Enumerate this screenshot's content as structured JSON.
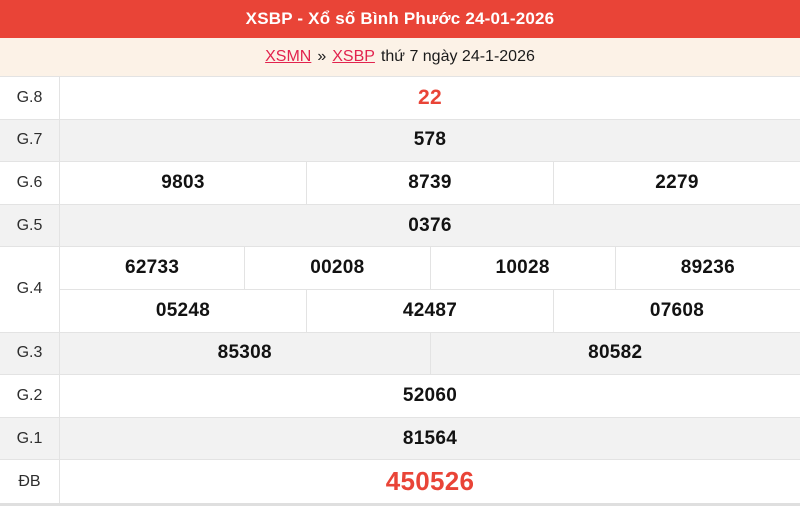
{
  "header": {
    "title": "XSBP - Xổ số Bình Phước 24-01-2026"
  },
  "breadcrumb": {
    "links": [
      "XSMN",
      "XSBP"
    ],
    "separator": "»",
    "date_text": "thứ 7 ngày 24-1-2026"
  },
  "results": {
    "rows": [
      {
        "label": "G.8",
        "values": [
          "22"
        ]
      },
      {
        "label": "G.7",
        "values": [
          "578"
        ]
      },
      {
        "label": "G.6",
        "values": [
          "9803",
          "8739",
          "2279"
        ]
      },
      {
        "label": "G.5",
        "values": [
          "0376"
        ]
      },
      {
        "label": "G.4",
        "lines": [
          [
            "62733",
            "00208",
            "10028",
            "89236"
          ],
          [
            "05248",
            "42487",
            "07608"
          ]
        ]
      },
      {
        "label": "G.3",
        "values": [
          "85308",
          "80582"
        ]
      },
      {
        "label": "G.2",
        "values": [
          "52060"
        ]
      },
      {
        "label": "G.1",
        "values": [
          "81564"
        ]
      },
      {
        "label": "ĐB",
        "values": [
          "450526"
        ]
      }
    ]
  },
  "colors": {
    "accent_red": "#e94437",
    "link_red": "#e2234e",
    "breadcrumb_bg": "#fcf2e7",
    "row_alt_bg": "#f2f2f2",
    "border": "#e3e3e3",
    "value_text": "#121212"
  }
}
